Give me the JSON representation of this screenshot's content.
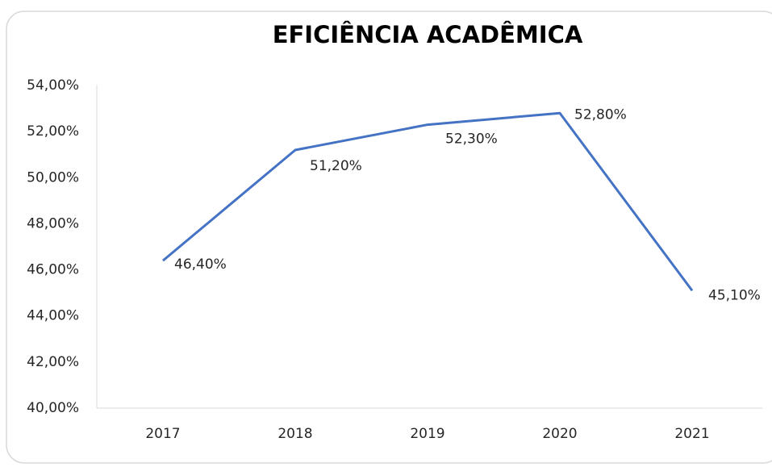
{
  "chart_data": {
    "type": "line",
    "title": "EFICIÊNCIA ACADÊMICA",
    "categories": [
      "2017",
      "2018",
      "2019",
      "2020",
      "2021"
    ],
    "series": [
      {
        "color": "#4472c4",
        "values": [
          46.4,
          51.2,
          52.3,
          52.8,
          45.1
        ],
        "value_labels": [
          "46,40%",
          "51,20%",
          "52,30%",
          "52,80%",
          "45,10%"
        ]
      }
    ],
    "ylim": [
      40,
      54
    ],
    "yticks": [
      {
        "value": 40,
        "label": "40,00%"
      },
      {
        "value": 42,
        "label": "42,00%"
      },
      {
        "value": 44,
        "label": "44,00%"
      },
      {
        "value": 46,
        "label": "46,00%"
      },
      {
        "value": 48,
        "label": "48,00%"
      },
      {
        "value": 50,
        "label": "50,00%"
      },
      {
        "value": 52,
        "label": "52,00%"
      },
      {
        "value": 54,
        "label": "54,00%"
      }
    ],
    "grid": false
  }
}
